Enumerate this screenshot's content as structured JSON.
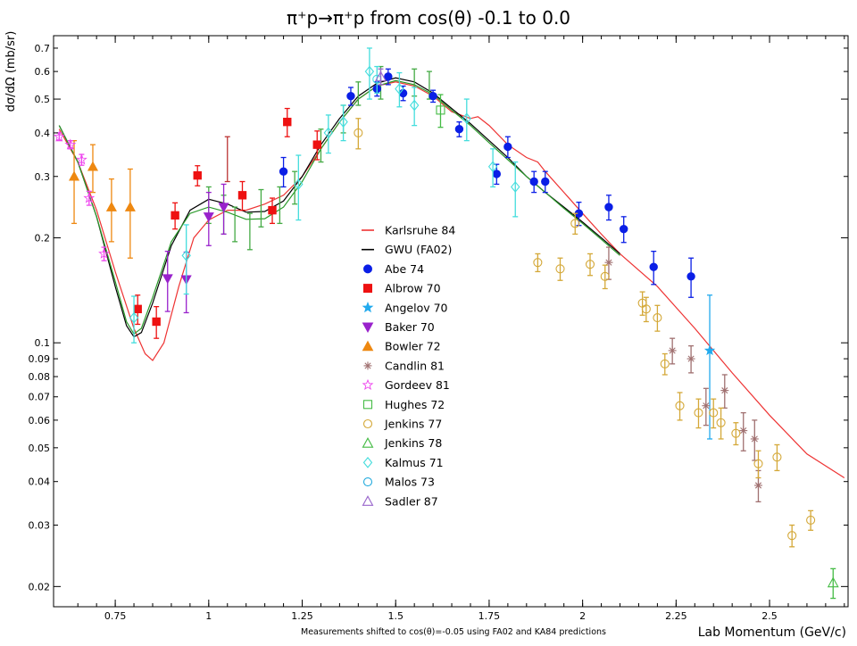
{
  "chart_data": {
    "type": "scatter",
    "title": "π⁺p→π⁺p from cos(θ) -0.1 to 0.0",
    "xlabel": "Lab Momentum (GeV/c)",
    "ylabel": "dσ/dΩ (mb/sr)",
    "footnote": "Measurements shifted to cos(θ)=-0.05 using FA02 and KA84 predictions",
    "xlim": [
      0.585,
      2.71
    ],
    "ylim": [
      0.0175,
      0.76
    ],
    "yscale": "log",
    "grid": false,
    "legend_position": "center",
    "x_ticks": [
      {
        "v": 0.75,
        "label": "0.75"
      },
      {
        "v": 1.0,
        "label": "1"
      },
      {
        "v": 1.25,
        "label": "1.25"
      },
      {
        "v": 1.5,
        "label": "1.5"
      },
      {
        "v": 1.75,
        "label": "1.75"
      },
      {
        "v": 2.0,
        "label": "2"
      },
      {
        "v": 2.25,
        "label": "2.25"
      },
      {
        "v": 2.5,
        "label": "2.5"
      }
    ],
    "y_ticks": [
      {
        "v": 0.02,
        "label": "0.02"
      },
      {
        "v": 0.03,
        "label": "0.03"
      },
      {
        "v": 0.04,
        "label": "0.04"
      },
      {
        "v": 0.05,
        "label": "0.05"
      },
      {
        "v": 0.06,
        "label": "0.06"
      },
      {
        "v": 0.07,
        "label": "0.07"
      },
      {
        "v": 0.08,
        "label": "0.08"
      },
      {
        "v": 0.09,
        "label": "0.09"
      },
      {
        "v": 0.1,
        "label": "0.1"
      },
      {
        "v": 0.2,
        "label": "0.2"
      },
      {
        "v": 0.3,
        "label": "0.3"
      },
      {
        "v": 0.4,
        "label": "0.4"
      },
      {
        "v": 0.5,
        "label": "0.5"
      },
      {
        "v": 0.6,
        "label": "0.6"
      },
      {
        "v": 0.7,
        "label": "0.7"
      }
    ],
    "curves": [
      {
        "name": "Karlsruhe 84",
        "color": "#ee3333",
        "points": [
          [
            0.6,
            0.41
          ],
          [
            0.65,
            0.33
          ],
          [
            0.7,
            0.24
          ],
          [
            0.75,
            0.16
          ],
          [
            0.8,
            0.11
          ],
          [
            0.83,
            0.093
          ],
          [
            0.85,
            0.089
          ],
          [
            0.88,
            0.1
          ],
          [
            0.92,
            0.145
          ],
          [
            0.96,
            0.2
          ],
          [
            1.0,
            0.225
          ],
          [
            1.05,
            0.24
          ],
          [
            1.1,
            0.24
          ],
          [
            1.15,
            0.25
          ],
          [
            1.2,
            0.265
          ],
          [
            1.25,
            0.3
          ],
          [
            1.3,
            0.36
          ],
          [
            1.35,
            0.43
          ],
          [
            1.4,
            0.5
          ],
          [
            1.45,
            0.545
          ],
          [
            1.5,
            0.56
          ],
          [
            1.55,
            0.545
          ],
          [
            1.6,
            0.51
          ],
          [
            1.65,
            0.46
          ],
          [
            1.7,
            0.44
          ],
          [
            1.72,
            0.445
          ],
          [
            1.75,
            0.42
          ],
          [
            1.8,
            0.37
          ],
          [
            1.85,
            0.34
          ],
          [
            1.88,
            0.33
          ],
          [
            1.9,
            0.31
          ],
          [
            1.95,
            0.27
          ],
          [
            2.0,
            0.235
          ],
          [
            2.05,
            0.205
          ],
          [
            2.1,
            0.18
          ],
          [
            2.2,
            0.145
          ],
          [
            2.3,
            0.11
          ],
          [
            2.4,
            0.082
          ],
          [
            2.5,
            0.062
          ],
          [
            2.6,
            0.048
          ],
          [
            2.7,
            0.041
          ]
        ]
      },
      {
        "name": "GWU (FA02)",
        "color": "#000000",
        "points": [
          [
            0.6,
            0.42
          ],
          [
            0.65,
            0.33
          ],
          [
            0.7,
            0.23
          ],
          [
            0.75,
            0.145
          ],
          [
            0.78,
            0.112
          ],
          [
            0.8,
            0.104
          ],
          [
            0.82,
            0.107
          ],
          [
            0.85,
            0.13
          ],
          [
            0.9,
            0.19
          ],
          [
            0.95,
            0.24
          ],
          [
            1.0,
            0.258
          ],
          [
            1.05,
            0.25
          ],
          [
            1.1,
            0.237
          ],
          [
            1.15,
            0.238
          ],
          [
            1.2,
            0.255
          ],
          [
            1.25,
            0.3
          ],
          [
            1.3,
            0.37
          ],
          [
            1.35,
            0.44
          ],
          [
            1.4,
            0.51
          ],
          [
            1.45,
            0.555
          ],
          [
            1.5,
            0.575
          ],
          [
            1.55,
            0.56
          ],
          [
            1.6,
            0.52
          ],
          [
            1.65,
            0.47
          ],
          [
            1.7,
            0.425
          ],
          [
            1.75,
            0.38
          ],
          [
            1.8,
            0.34
          ],
          [
            1.85,
            0.3
          ],
          [
            1.9,
            0.27
          ],
          [
            1.95,
            0.245
          ],
          [
            2.0,
            0.222
          ],
          [
            2.05,
            0.2
          ],
          [
            2.1,
            0.18
          ]
        ]
      },
      {
        "name": "",
        "color": "#2a9a2a",
        "points": [
          [
            0.6,
            0.42
          ],
          [
            0.65,
            0.33
          ],
          [
            0.7,
            0.23
          ],
          [
            0.75,
            0.15
          ],
          [
            0.78,
            0.115
          ],
          [
            0.8,
            0.106
          ],
          [
            0.82,
            0.11
          ],
          [
            0.85,
            0.135
          ],
          [
            0.9,
            0.195
          ],
          [
            0.95,
            0.235
          ],
          [
            1.0,
            0.245
          ],
          [
            1.05,
            0.237
          ],
          [
            1.1,
            0.226
          ],
          [
            1.15,
            0.227
          ],
          [
            1.2,
            0.245
          ],
          [
            1.25,
            0.29
          ],
          [
            1.3,
            0.36
          ],
          [
            1.35,
            0.43
          ],
          [
            1.4,
            0.5
          ],
          [
            1.45,
            0.545
          ],
          [
            1.5,
            0.565
          ],
          [
            1.55,
            0.55
          ],
          [
            1.6,
            0.515
          ],
          [
            1.65,
            0.465
          ],
          [
            1.7,
            0.42
          ],
          [
            1.75,
            0.375
          ],
          [
            1.8,
            0.335
          ],
          [
            1.85,
            0.3
          ],
          [
            1.9,
            0.27
          ],
          [
            1.95,
            0.243
          ],
          [
            2.0,
            0.22
          ],
          [
            2.05,
            0.198
          ],
          [
            2.1,
            0.178
          ]
        ]
      }
    ],
    "series": [
      {
        "name": "Abe 74",
        "color": "#0a1ee6",
        "marker": "circle",
        "filled": true,
        "points": [
          [
            1.2,
            0.31,
            0.03
          ],
          [
            1.38,
            0.51,
            0.03
          ],
          [
            1.45,
            0.535,
            0.025
          ],
          [
            1.48,
            0.58,
            0.03
          ],
          [
            1.52,
            0.52,
            0.025
          ],
          [
            1.6,
            0.51,
            0.02
          ],
          [
            1.67,
            0.41,
            0.02
          ],
          [
            1.77,
            0.305,
            0.02
          ],
          [
            1.8,
            0.365,
            0.025
          ],
          [
            1.87,
            0.29,
            0.02
          ],
          [
            1.9,
            0.29,
            0.02
          ],
          [
            1.99,
            0.235,
            0.018
          ],
          [
            2.07,
            0.245,
            0.02
          ],
          [
            2.11,
            0.212,
            0.018
          ],
          [
            2.19,
            0.165,
            0.018
          ],
          [
            2.29,
            0.155,
            0.02
          ]
        ]
      },
      {
        "name": "Albrow 70",
        "color": "#ee1111",
        "marker": "square",
        "filled": true,
        "points": [
          [
            0.81,
            0.125,
            0.012
          ],
          [
            0.86,
            0.115,
            0.012
          ],
          [
            0.91,
            0.232,
            0.02
          ],
          [
            0.97,
            0.302,
            0.02
          ],
          [
            1.09,
            0.265,
            0.025
          ],
          [
            1.17,
            0.24,
            0.02
          ],
          [
            1.21,
            0.43,
            0.04
          ],
          [
            1.29,
            0.37,
            0.035
          ]
        ]
      },
      {
        "name": "Angelov 70",
        "color": "#22aaee",
        "marker": "star",
        "filled": true,
        "points": [
          [
            2.34,
            0.095,
            0.042
          ]
        ]
      },
      {
        "name": "Baker 70",
        "color": "#9922cc",
        "marker": "tri-down",
        "filled": true,
        "points": [
          [
            0.89,
            0.153,
            0.03
          ],
          [
            0.94,
            0.152,
            0.03
          ],
          [
            1.0,
            0.23,
            0.04
          ],
          [
            1.04,
            0.245,
            0.04
          ]
        ]
      },
      {
        "name": "Bowler 72",
        "color": "#ee8811",
        "marker": "tri-up",
        "filled": true,
        "points": [
          [
            0.64,
            0.3,
            0.08
          ],
          [
            0.69,
            0.32,
            0.05
          ],
          [
            0.74,
            0.245,
            0.05
          ],
          [
            0.79,
            0.245,
            0.07
          ]
        ]
      },
      {
        "name": "Candlin 81",
        "color": "#a07070",
        "marker": "asterisk",
        "filled": false,
        "points": [
          [
            2.07,
            0.17,
            0.018
          ],
          [
            2.24,
            0.095,
            0.008
          ],
          [
            2.29,
            0.09,
            0.008
          ],
          [
            2.33,
            0.066,
            0.008
          ],
          [
            2.38,
            0.073,
            0.008
          ],
          [
            2.43,
            0.056,
            0.007
          ],
          [
            2.46,
            0.053,
            0.007
          ],
          [
            2.47,
            0.039,
            0.004
          ]
        ]
      },
      {
        "name": "Gordeev 81",
        "color": "#ee44ee",
        "marker": "star",
        "filled": false,
        "points": [
          [
            0.6,
            0.39,
            0.01
          ],
          [
            0.63,
            0.37,
            0.01
          ],
          [
            0.66,
            0.335,
            0.012
          ],
          [
            0.68,
            0.26,
            0.012
          ],
          [
            0.72,
            0.18,
            0.008
          ]
        ]
      },
      {
        "name": "Hughes 72",
        "color": "#44bb44",
        "marker": "square",
        "filled": false,
        "points": [
          [
            1.62,
            0.465,
            0.05
          ]
        ]
      },
      {
        "name": "Jenkins 77",
        "color": "#d4a838",
        "marker": "circle",
        "filled": false,
        "points": [
          [
            1.4,
            0.4,
            0.04
          ],
          [
            1.88,
            0.17,
            0.01
          ],
          [
            1.94,
            0.163,
            0.012
          ],
          [
            1.98,
            0.22,
            0.015
          ],
          [
            2.02,
            0.168,
            0.012
          ],
          [
            2.06,
            0.155,
            0.012
          ],
          [
            2.16,
            0.13,
            0.01
          ],
          [
            2.17,
            0.125,
            0.01
          ],
          [
            2.2,
            0.118,
            0.01
          ],
          [
            2.22,
            0.087,
            0.006
          ],
          [
            2.26,
            0.066,
            0.006
          ],
          [
            2.31,
            0.063,
            0.006
          ],
          [
            2.35,
            0.063,
            0.006
          ],
          [
            2.37,
            0.059,
            0.006
          ],
          [
            2.41,
            0.055,
            0.004
          ],
          [
            2.47,
            0.045,
            0.004
          ],
          [
            2.52,
            0.047,
            0.004
          ],
          [
            2.56,
            0.028,
            0.002
          ],
          [
            2.61,
            0.031,
            0.002
          ]
        ]
      },
      {
        "name": "Jenkins 78",
        "color": "#44bb44",
        "marker": "tri-up",
        "filled": false,
        "points": [
          [
            2.67,
            0.0205,
            0.002
          ]
        ]
      },
      {
        "name": "Kalmus 71",
        "color": "#44dddd",
        "marker": "diamond",
        "filled": false,
        "points": [
          [
            0.8,
            0.118,
            0.018
          ],
          [
            0.94,
            0.178,
            0.04
          ],
          [
            1.24,
            0.285,
            0.06
          ],
          [
            1.32,
            0.4,
            0.05
          ],
          [
            1.36,
            0.43,
            0.05
          ],
          [
            1.43,
            0.6,
            0.1
          ],
          [
            1.51,
            0.535,
            0.06
          ],
          [
            1.55,
            0.48,
            0.06
          ],
          [
            1.69,
            0.44,
            0.06
          ],
          [
            1.76,
            0.32,
            0.04
          ],
          [
            1.82,
            0.28,
            0.05
          ]
        ]
      },
      {
        "name": "Malos 73",
        "color": "#44dddd",
        "marker": "circle",
        "filled": false,
        "points": [
          [
            1.45,
            0.57,
            0.05
          ]
        ]
      },
      {
        "name": "Sadler 87",
        "color": "#9966cc",
        "marker": "tri-up",
        "filled": false,
        "points": [
          [
            1.46,
            0.58,
            0.03
          ]
        ]
      }
    ],
    "misc_bars": [
      {
        "color": "#44aa44",
        "points": [
          [
            1.0,
            0.25,
            0.03
          ],
          [
            1.04,
            0.235,
            0.03
          ],
          [
            1.07,
            0.22,
            0.025
          ],
          [
            1.11,
            0.21,
            0.025
          ],
          [
            1.14,
            0.245,
            0.03
          ],
          [
            1.19,
            0.25,
            0.03
          ],
          [
            1.23,
            0.28,
            0.03
          ],
          [
            1.3,
            0.37,
            0.04
          ],
          [
            1.36,
            0.44,
            0.04
          ],
          [
            1.4,
            0.52,
            0.04
          ],
          [
            1.46,
            0.56,
            0.06
          ],
          [
            1.55,
            0.56,
            0.05
          ],
          [
            1.59,
            0.55,
            0.05
          ]
        ]
      },
      {
        "color": "#bb3333",
        "points": [
          [
            1.05,
            0.34,
            0.05
          ]
        ]
      }
    ],
    "legend": [
      {
        "name": "Karlsruhe 84",
        "kind": "line",
        "color": "#ee3333"
      },
      {
        "name": "GWU (FA02)",
        "kind": "line",
        "color": "#000000"
      },
      {
        "name": "Abe 74",
        "kind": "circle",
        "filled": true,
        "color": "#0a1ee6"
      },
      {
        "name": "Albrow 70",
        "kind": "square",
        "filled": true,
        "color": "#ee1111"
      },
      {
        "name": "Angelov 70",
        "kind": "star",
        "filled": true,
        "color": "#22aaee"
      },
      {
        "name": "Baker 70",
        "kind": "tri-down",
        "filled": true,
        "color": "#9922cc"
      },
      {
        "name": "Bowler 72",
        "kind": "tri-up",
        "filled": true,
        "color": "#ee8811"
      },
      {
        "name": "Candlin 81",
        "kind": "asterisk",
        "filled": false,
        "color": "#a07070"
      },
      {
        "name": "Gordeev 81",
        "kind": "star",
        "filled": false,
        "color": "#ee44ee"
      },
      {
        "name": "Hughes 72",
        "kind": "square",
        "filled": false,
        "color": "#44bb44"
      },
      {
        "name": "Jenkins 77",
        "kind": "circle",
        "filled": false,
        "color": "#d4a838"
      },
      {
        "name": "Jenkins 78",
        "kind": "tri-up",
        "filled": false,
        "color": "#44bb44"
      },
      {
        "name": "Kalmus 71",
        "kind": "diamond",
        "filled": false,
        "color": "#44dddd"
      },
      {
        "name": "Malos 73",
        "kind": "circle",
        "filled": false,
        "color": "#22aadd"
      },
      {
        "name": "Sadler 87",
        "kind": "tri-up",
        "filled": false,
        "color": "#9966cc"
      }
    ]
  }
}
